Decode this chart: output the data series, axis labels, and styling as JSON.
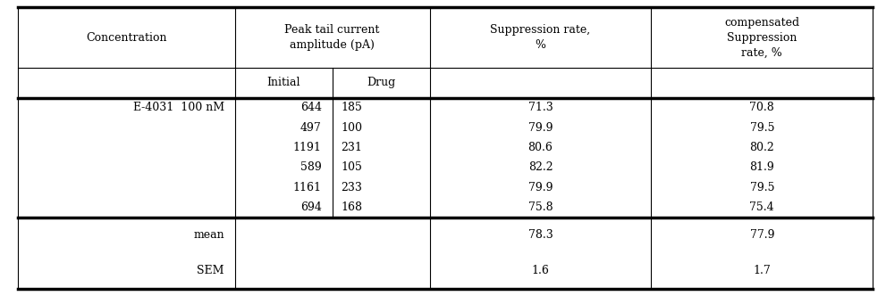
{
  "col_bounds": [
    0.02,
    0.265,
    0.375,
    0.485,
    0.735,
    0.985
  ],
  "data_rows": [
    [
      "E‑4031  100 nM",
      "644",
      "185",
      "71.3",
      "70.8"
    ],
    [
      "",
      "497",
      "100",
      "79.9",
      "79.5"
    ],
    [
      "",
      "1191",
      "231",
      "80.6",
      "80.2"
    ],
    [
      "",
      "589",
      "105",
      "82.2",
      "81.9"
    ],
    [
      "",
      "1161",
      "233",
      "79.9",
      "79.5"
    ],
    [
      "",
      "694",
      "168",
      "75.8",
      "75.4"
    ]
  ],
  "mean_row": [
    "mean",
    "",
    "",
    "78.3",
    "77.9"
  ],
  "sem_row": [
    "SEM",
    "",
    "",
    "1.6",
    "1.7"
  ],
  "background_color": "#ffffff",
  "text_color": "#000000",
  "font_size": 9.0,
  "font_family": "Palatino Linotype",
  "header1_text_peak": "Peak tail current\namplitude (pA)",
  "header1_text_conc": "Concentration",
  "header1_text_supp": "Suppression rate,\n%",
  "header1_text_comp": "compensated\nSuppression\nrate, %",
  "header2_initial": "Initial",
  "header2_drug": "Drug"
}
